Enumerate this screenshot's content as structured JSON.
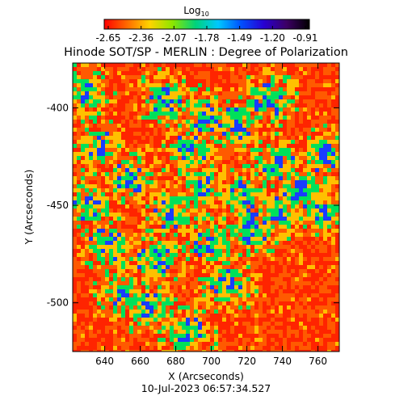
{
  "chart_data": {
    "type": "heatmap",
    "title": "Hinode SOT/SP - MERLIN : Degree of Polarization",
    "subtitle": "10-Jul-2023 06:57:34.527",
    "xlabel": "X (Arcseconds)",
    "ylabel": "Y (Arcseconds)",
    "xlim": [
      622,
      772
    ],
    "ylim": [
      -525,
      -377
    ],
    "x_ticks": [
      640,
      660,
      680,
      700,
      720,
      740,
      760
    ],
    "y_ticks": [
      -400,
      -450,
      -500
    ],
    "grid": false,
    "colorbar": {
      "label_base": "Log",
      "label_sub": "10",
      "range": [
        -2.65,
        -0.91
      ],
      "ticks": [
        "-2.65",
        "-2.36",
        "-2.07",
        "-1.78",
        "-1.49",
        "-1.20",
        "-0.91"
      ],
      "colors": [
        "#ff0000",
        "#ff6a00",
        "#ffd400",
        "#8ce600",
        "#00d27a",
        "#00c8ff",
        "#0050ff",
        "#2800d2",
        "#3c0064",
        "#000000"
      ]
    },
    "field_colors": [
      "#ff2400",
      "#ff5a00",
      "#ffc000",
      "#00e05a",
      "#1a3cff"
    ]
  }
}
